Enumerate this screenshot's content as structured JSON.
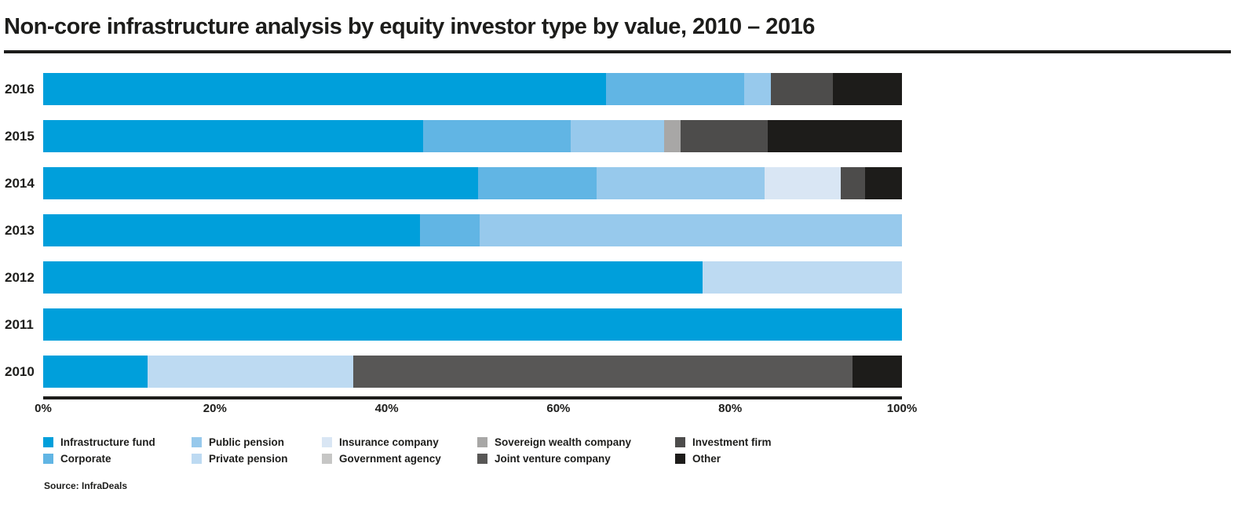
{
  "title": "Non-core infrastructure analysis by equity investor type by value, 2010 – 2016",
  "source": "Source: InfraDeals",
  "axis": {
    "ticks": [
      "0%",
      "20%",
      "40%",
      "60%",
      "80%",
      "100%"
    ],
    "tick_values": [
      0,
      20,
      40,
      60,
      80,
      100
    ]
  },
  "colors": {
    "text": "#1d1d1b",
    "infrastructure_fund": "#009fdb",
    "corporate": "#61b5e4",
    "public_pension": "#97c9ec",
    "private_pension": "#bddaf2",
    "insurance_company": "#d9e6f4",
    "government_agency": "#c6c6c5",
    "sovereign_wealth_company": "#a8a7a6",
    "joint_venture_company": "#585756",
    "investment_firm": "#4d4c4b",
    "other": "#1d1c1a"
  },
  "legend": {
    "column_lefts": [
      55,
      244,
      410,
      608,
      860
    ],
    "row_tops": [
      556,
      577
    ],
    "items": [
      {
        "label": "Infrastructure fund",
        "key": "infrastructure_fund",
        "color": "#009fdb",
        "col": 0,
        "row": 0
      },
      {
        "label": "Corporate",
        "key": "corporate",
        "color": "#61b5e4",
        "col": 0,
        "row": 1
      },
      {
        "label": "Public pension",
        "key": "public_pension",
        "color": "#97c9ec",
        "col": 1,
        "row": 0
      },
      {
        "label": "Private pension",
        "key": "private_pension",
        "color": "#bddaf2",
        "col": 1,
        "row": 1
      },
      {
        "label": "Insurance company",
        "key": "insurance_company",
        "color": "#d9e6f4",
        "col": 2,
        "row": 0
      },
      {
        "label": "Government agency",
        "key": "government_agency",
        "color": "#c6c6c5",
        "col": 2,
        "row": 1
      },
      {
        "label": "Sovereign wealth company",
        "key": "sovereign_wealth_company",
        "color": "#a8a7a6",
        "col": 3,
        "row": 0
      },
      {
        "label": "Joint venture company",
        "key": "joint_venture_company",
        "color": "#585756",
        "col": 3,
        "row": 1
      },
      {
        "label": "Investment firm",
        "key": "investment_firm",
        "color": "#4d4c4b",
        "col": 4,
        "row": 0
      },
      {
        "label": "Other",
        "key": "other",
        "color": "#1d1c1a",
        "col": 4,
        "row": 1
      }
    ]
  },
  "chart_data": {
    "type": "bar",
    "stacked": true,
    "orientation": "horizontal",
    "unit": "percent_of_value",
    "xlim": [
      0,
      100
    ],
    "grid": false,
    "legend_position": "bottom",
    "categories": [
      "2016",
      "2015",
      "2014",
      "2013",
      "2012",
      "2011",
      "2010"
    ],
    "series": [
      {
        "name": "Infrastructure fund",
        "key": "infrastructure_fund",
        "color": "#009fdb",
        "values": [
          65.5,
          44.2,
          50.6,
          43.9,
          76.8,
          100,
          12.2
        ]
      },
      {
        "name": "Corporate",
        "key": "corporate",
        "color": "#61b5e4",
        "values": [
          16.1,
          17.2,
          13.8,
          6.9,
          0,
          0,
          0
        ]
      },
      {
        "name": "Public pension",
        "key": "public_pension",
        "color": "#97c9ec",
        "values": [
          3.1,
          10.9,
          19.6,
          49.2,
          0,
          0,
          0
        ]
      },
      {
        "name": "Private pension",
        "key": "private_pension",
        "color": "#bddaf2",
        "values": [
          0,
          0,
          0,
          0,
          23.2,
          0,
          23.9
        ]
      },
      {
        "name": "Insurance company",
        "key": "insurance_company",
        "color": "#d9e6f4",
        "values": [
          0,
          0,
          8.9,
          0,
          0,
          0,
          0
        ]
      },
      {
        "name": "Government agency",
        "key": "government_agency",
        "color": "#c6c6c5",
        "values": [
          0,
          0,
          0,
          0,
          0,
          0,
          0
        ]
      },
      {
        "name": "Sovereign wealth company",
        "key": "sovereign_wealth_company",
        "color": "#a8a7a6",
        "values": [
          0,
          1.9,
          0,
          0,
          0,
          0,
          0
        ]
      },
      {
        "name": "Joint venture company",
        "key": "joint_venture_company",
        "color": "#585756",
        "values": [
          0,
          0,
          0,
          0,
          0,
          0,
          58.1
        ]
      },
      {
        "name": "Investment firm",
        "key": "investment_firm",
        "color": "#4d4c4b",
        "values": [
          7.3,
          10.2,
          2.8,
          0,
          0,
          0,
          0
        ]
      },
      {
        "name": "Other",
        "key": "other",
        "color": "#1d1c1a",
        "values": [
          8.0,
          15.6,
          4.3,
          0,
          0,
          0,
          5.8
        ]
      }
    ]
  },
  "layout_note_values_visible_only": true
}
